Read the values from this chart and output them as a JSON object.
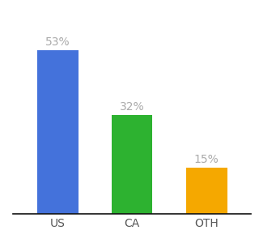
{
  "categories": [
    "US",
    "CA",
    "OTH"
  ],
  "values": [
    53,
    32,
    15
  ],
  "bar_colors": [
    "#4472db",
    "#2db230",
    "#f5a800"
  ],
  "label_color": "#aaaaaa",
  "value_labels": [
    "53%",
    "32%",
    "15%"
  ],
  "ylim": [
    0,
    63
  ],
  "background_color": "#ffffff",
  "tick_fontsize": 10,
  "label_fontsize": 10,
  "bar_width": 0.55
}
